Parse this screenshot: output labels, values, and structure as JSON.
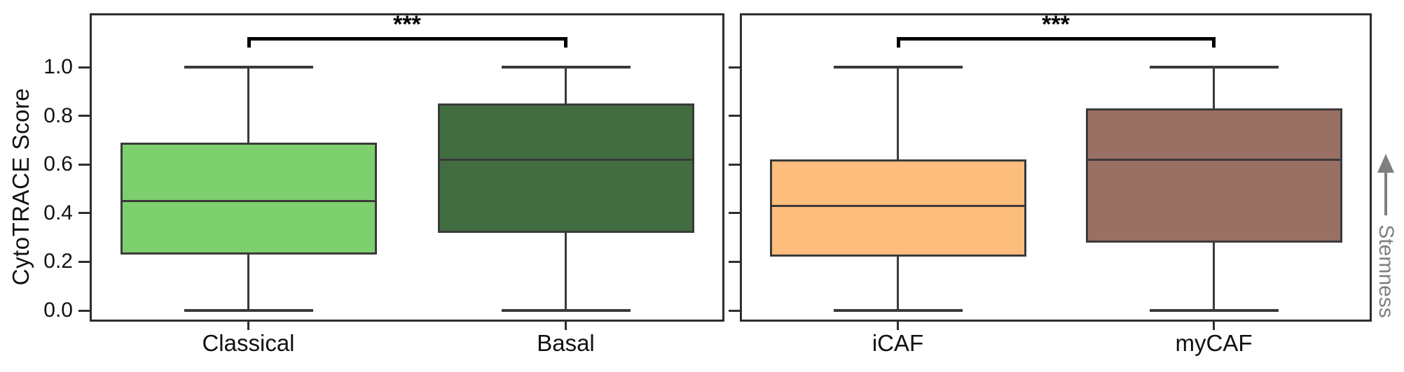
{
  "figure": {
    "background": "#ffffff",
    "y_axis": {
      "label": "CytoTRACE Score",
      "tick_labels": [
        "0.0",
        "0.2",
        "0.4",
        "0.6",
        "0.8",
        "1.0"
      ]
    },
    "annotation": {
      "label": "Stemness",
      "icon": "up-arrow-icon",
      "color": "#7f7f7f"
    },
    "style_colors": {
      "frame": "#2e2e2e",
      "box_stroke": "#3a3a3a",
      "significance": "#000000"
    }
  },
  "chart_data": [
    {
      "type": "boxplot",
      "panel": "left",
      "title": "",
      "ylabel": "CytoTRACE Score",
      "ylim": [
        0,
        1
      ],
      "yticks": [
        0.0,
        0.2,
        0.4,
        0.6,
        0.8,
        1.0
      ],
      "show_tick_labels": true,
      "grid": false,
      "categories": [
        "Classical",
        "Basal"
      ],
      "series": [
        {
          "name": "Classical",
          "min": 0.0,
          "q1": 0.23,
          "median": 0.45,
          "q3": 0.69,
          "max": 1.0,
          "fill": "#7ed06f"
        },
        {
          "name": "Basal",
          "min": 0.0,
          "q1": 0.32,
          "median": 0.62,
          "q3": 0.85,
          "max": 1.0,
          "fill": "#426d40"
        }
      ],
      "significance": {
        "label": "***",
        "pair": [
          "Classical",
          "Basal"
        ]
      }
    },
    {
      "type": "boxplot",
      "panel": "right",
      "title": "",
      "ylabel": "",
      "ylim": [
        0,
        1
      ],
      "yticks": [
        0.0,
        0.2,
        0.4,
        0.6,
        0.8,
        1.0
      ],
      "show_tick_labels": false,
      "grid": false,
      "categories": [
        "iCAF",
        "myCAF"
      ],
      "series": [
        {
          "name": "iCAF",
          "min": 0.0,
          "q1": 0.22,
          "median": 0.43,
          "q3": 0.62,
          "max": 1.0,
          "fill": "#fdbe7d"
        },
        {
          "name": "myCAF",
          "min": 0.0,
          "q1": 0.28,
          "median": 0.62,
          "q3": 0.83,
          "max": 1.0,
          "fill": "#997064"
        }
      ],
      "significance": {
        "label": "***",
        "pair": [
          "iCAF",
          "myCAF"
        ]
      }
    }
  ]
}
